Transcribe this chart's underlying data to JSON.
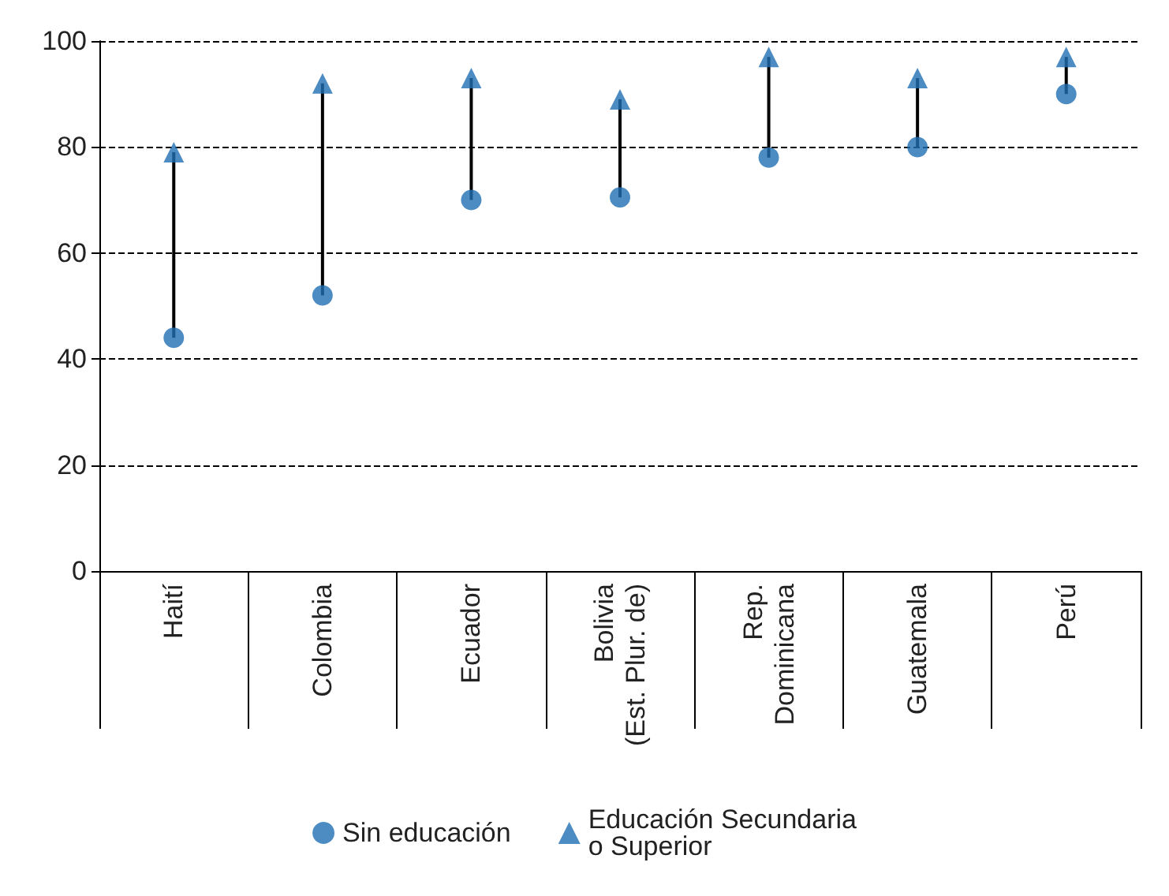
{
  "chart_data": {
    "type": "scatter",
    "categories": [
      "Haití",
      "Colombia",
      "Ecuador",
      "Bolivia\n(Est. Plur. de)",
      "Rep.\nDominicana",
      "Guatemala",
      "Perú"
    ],
    "series": [
      {
        "name": "Sin educación",
        "color": "#1f6fb4",
        "marker": "circle",
        "values": [
          44,
          52,
          70,
          70.5,
          78,
          80,
          90
        ]
      },
      {
        "name": "Educación Secundaria\no Superior",
        "color": "#1f6fb4",
        "marker": "triangle",
        "values": [
          79,
          92,
          93,
          89,
          97,
          93,
          97
        ]
      }
    ],
    "ylim": [
      0,
      100
    ],
    "yticks": [
      0,
      20,
      40,
      60,
      80,
      100
    ],
    "grid": "y",
    "line_style": "dashed",
    "legend": "bottom"
  }
}
